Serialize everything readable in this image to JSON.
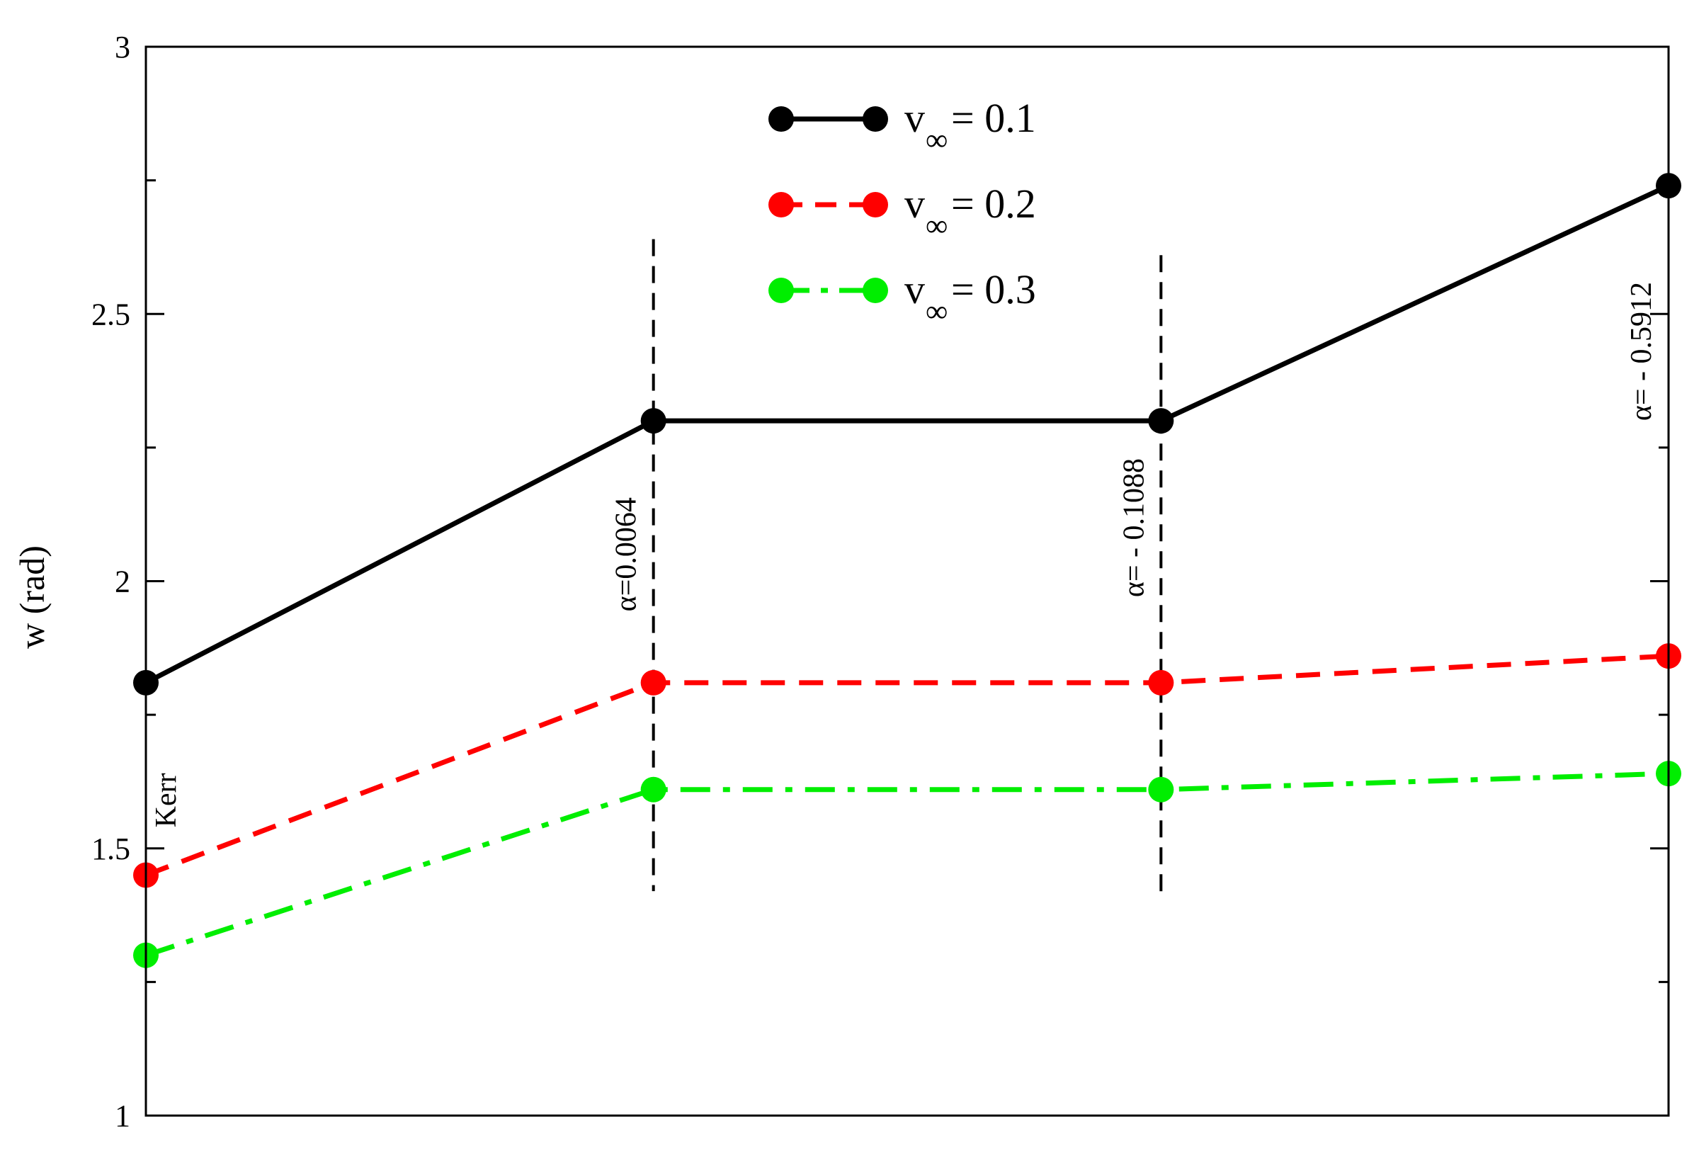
{
  "chart_data": {
    "type": "line",
    "title": "",
    "xlabel": "",
    "ylabel": "w (rad)",
    "ylim": [
      1,
      3
    ],
    "yticks": [
      "1",
      "1.5",
      "2",
      "2.5",
      "3"
    ],
    "x": [
      0,
      1,
      2,
      3
    ],
    "xlim": [
      0,
      3
    ],
    "grid": false,
    "legend_position": "top-center",
    "series": [
      {
        "name": "v∞ = 0.1",
        "label_main": "v",
        "label_sub": "∞",
        "label_value": " = 0.1",
        "color": "#000000",
        "style": "solid",
        "values": [
          1.81,
          2.3,
          2.3,
          2.74
        ]
      },
      {
        "name": "v∞ = 0.2",
        "label_main": "v",
        "label_sub": "∞",
        "label_value": " = 0.2",
        "color": "#ff0000",
        "style": "dashed",
        "values": [
          1.45,
          1.81,
          1.81,
          1.86
        ]
      },
      {
        "name": "v∞ = 0.3",
        "label_main": "v",
        "label_sub": "∞",
        "label_value": " = 0.3",
        "color": "#00ee00",
        "style": "dashdot",
        "values": [
          1.3,
          1.61,
          1.61,
          1.64
        ]
      }
    ],
    "reference_lines": [
      {
        "x": 1,
        "from": 1.42,
        "to": 2.64,
        "style": "dashed",
        "color": "#000000"
      },
      {
        "x": 2,
        "from": 1.41,
        "to": 2.61,
        "style": "dashed",
        "color": "#000000"
      }
    ],
    "annotations": [
      {
        "text": "Kerr",
        "x": 0,
        "y": 1.59
      },
      {
        "text": "α=0.0064",
        "x": 1,
        "y": 2.05
      },
      {
        "text": "α= - 0.1088",
        "x": 2,
        "y": 2.1
      },
      {
        "text": "α= - 0.5912",
        "x": 3,
        "y": 2.43
      }
    ]
  }
}
